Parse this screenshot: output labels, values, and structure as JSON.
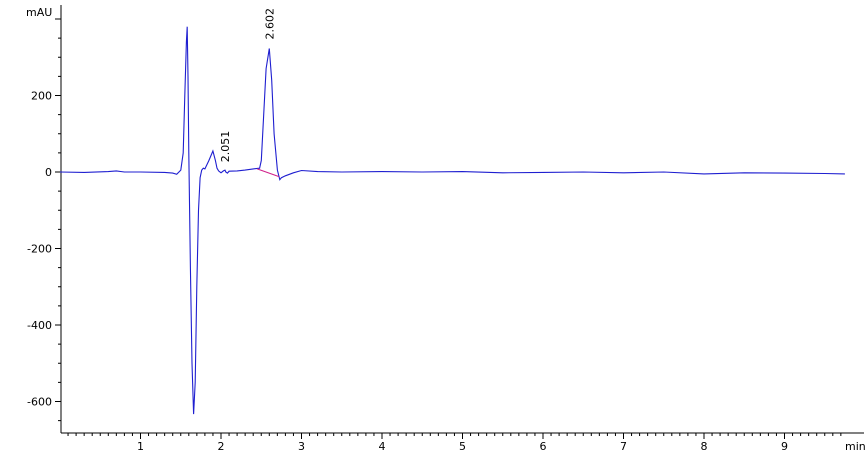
{
  "chart_data": {
    "type": "line",
    "title": "",
    "ylabel": "mAU",
    "xlabel": "min",
    "xlim": [
      0,
      9.75
    ],
    "ylim": [
      -680,
      410
    ],
    "x_ticks": [
      1,
      2,
      3,
      4,
      5,
      6,
      7,
      8,
      9
    ],
    "x_tick_labels": [
      "1",
      "2",
      "3",
      "4",
      "5",
      "6",
      "7",
      "8",
      "9"
    ],
    "y_ticks": [
      -600,
      -400,
      -200,
      0,
      200
    ],
    "y_tick_labels": [
      "-600",
      "-400",
      "-200",
      "0",
      "200"
    ],
    "grid": false,
    "series": [
      {
        "color": "#1f1fd0",
        "x": [
          0.0,
          0.3,
          0.6,
          0.7,
          0.8,
          1.0,
          1.3,
          1.4,
          1.45,
          1.5,
          1.53,
          1.55,
          1.57,
          1.58,
          1.59,
          1.6,
          1.62,
          1.64,
          1.66,
          1.68,
          1.7,
          1.72,
          1.74,
          1.76,
          1.78,
          1.8,
          1.85,
          1.9,
          1.93,
          1.95,
          1.97,
          2.0,
          2.03,
          2.05,
          2.06,
          2.08,
          2.1,
          2.2,
          2.3,
          2.4,
          2.48,
          2.5,
          2.53,
          2.56,
          2.6,
          2.63,
          2.66,
          2.7,
          2.73,
          2.75,
          2.8,
          2.9,
          3.0,
          3.2,
          3.5,
          4.0,
          4.5,
          5.0,
          5.5,
          6.0,
          6.5,
          7.0,
          7.5,
          8.0,
          8.5,
          9.0,
          9.5,
          9.75
        ],
        "y": [
          0,
          -1,
          1,
          3,
          0,
          0,
          -1,
          -3,
          -6,
          5,
          50,
          200,
          340,
          380,
          250,
          50,
          -250,
          -500,
          -633,
          -550,
          -300,
          -100,
          -15,
          5,
          10,
          8,
          30,
          55,
          30,
          10,
          3,
          -2,
          3,
          5,
          0,
          -3,
          2,
          3,
          5,
          8,
          10,
          30,
          150,
          270,
          323,
          240,
          100,
          5,
          -20,
          -15,
          -10,
          -2,
          4,
          1,
          0,
          1,
          0,
          1,
          -2,
          -1,
          0,
          -2,
          0,
          -5,
          -2,
          -3,
          -4,
          -5
        ]
      }
    ],
    "integration_baselines": [
      {
        "x": [
          2.45,
          2.72
        ],
        "y": [
          8,
          -12
        ]
      }
    ],
    "peak_labels": [
      {
        "x": 2.051,
        "y": 15,
        "text": "2.051"
      },
      {
        "x": 2.602,
        "y": 336,
        "text": "2.602"
      }
    ]
  }
}
